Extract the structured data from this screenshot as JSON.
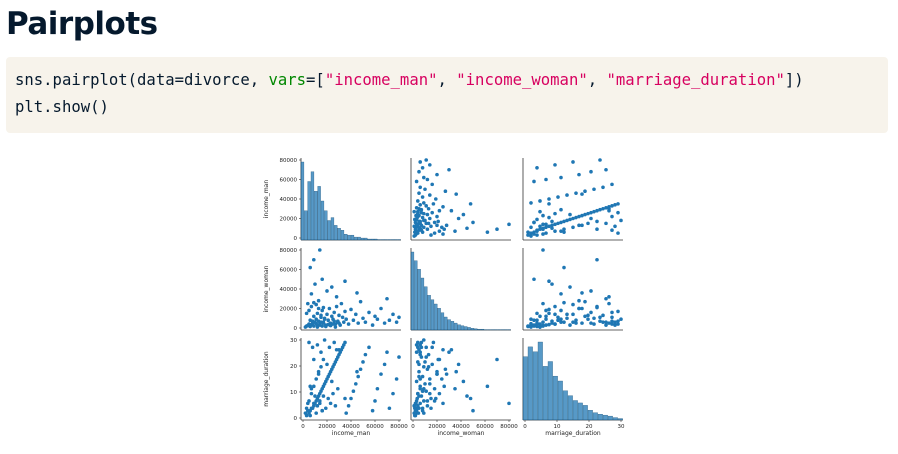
{
  "slide": {
    "title": "Pairplots"
  },
  "code": {
    "line1": {
      "prefix": "sns.pairplot(data=divorce, ",
      "kw": "vars",
      "eq": "=[",
      "s1": "\"income_man\"",
      "sep1": ", ",
      "s2": "\"income_woman\"",
      "sep2": ", ",
      "s3": "\"marriage_duration\"",
      "suffix": "])"
    },
    "line2": "plt.show()"
  },
  "colors": {
    "accent": "#1f77b4",
    "code_bg": "#f7f3eb",
    "keyword": "#008700",
    "string": "#d7005f",
    "title": "#05192d"
  },
  "chart_data": {
    "type": "scatter",
    "variables": [
      "income_man",
      "income_woman",
      "marriage_duration"
    ],
    "ranges": {
      "income_man": [
        0,
        80000
      ],
      "income_woman": [
        0,
        80000
      ],
      "marriage_duration": [
        0,
        32
      ]
    },
    "ticks": {
      "income_man": [
        "0",
        "20000",
        "40000",
        "60000",
        "80000"
      ],
      "income_woman": [
        "0",
        "20000",
        "40000",
        "60000",
        "80000"
      ],
      "marriage_duration": [
        "0",
        "10",
        "20",
        "30"
      ]
    },
    "xlabels": [
      "income_man",
      "income_woman",
      "marriage_duration"
    ],
    "ylabels": [
      "income_man",
      "income_woman",
      "marriage_duration"
    ],
    "points": [
      [
        3000,
        2000,
        1
      ],
      [
        5000,
        3000,
        2
      ],
      [
        6000,
        8000,
        3
      ],
      [
        8000,
        5000,
        4
      ],
      [
        9000,
        12000,
        5
      ],
      [
        10000,
        6000,
        6
      ],
      [
        11000,
        9000,
        7
      ],
      [
        12000,
        15000,
        8
      ],
      [
        13000,
        7000,
        9
      ],
      [
        14000,
        4000,
        10
      ],
      [
        15000,
        11000,
        11
      ],
      [
        16000,
        18000,
        12
      ],
      [
        17000,
        6000,
        13
      ],
      [
        18000,
        10000,
        14
      ],
      [
        19000,
        3000,
        15
      ],
      [
        20000,
        14000,
        16
      ],
      [
        21000,
        8000,
        17
      ],
      [
        22000,
        20000,
        18
      ],
      [
        23000,
        5000,
        19
      ],
      [
        24000,
        12000,
        20
      ],
      [
        25000,
        9000,
        21
      ],
      [
        26000,
        16000,
        22
      ],
      [
        27000,
        4000,
        23
      ],
      [
        28000,
        22000,
        24
      ],
      [
        29000,
        7000,
        25
      ],
      [
        30000,
        13000,
        26
      ],
      [
        31000,
        3000,
        27
      ],
      [
        32000,
        25000,
        28
      ],
      [
        33000,
        11000,
        29
      ],
      [
        34000,
        6000,
        30
      ],
      [
        35000,
        17000,
        31
      ],
      [
        36000,
        9000,
        2
      ],
      [
        38000,
        4000,
        5
      ],
      [
        40000,
        19000,
        8
      ],
      [
        42000,
        8000,
        11
      ],
      [
        44000,
        14000,
        14
      ],
      [
        46000,
        5000,
        17
      ],
      [
        48000,
        27000,
        20
      ],
      [
        50000,
        10000,
        23
      ],
      [
        52000,
        6000,
        26
      ],
      [
        55000,
        16000,
        29
      ],
      [
        58000,
        3000,
        3
      ],
      [
        60000,
        12000,
        7
      ],
      [
        62000,
        9000,
        12
      ],
      [
        65000,
        20000,
        18
      ],
      [
        68000,
        5000,
        22
      ],
      [
        70000,
        30000,
        27
      ],
      [
        72000,
        8000,
        4
      ],
      [
        75000,
        14000,
        10
      ],
      [
        78000,
        6000,
        16
      ],
      [
        80000,
        11000,
        25
      ],
      [
        4000,
        25000,
        6
      ],
      [
        7000,
        35000,
        12
      ],
      [
        10000,
        45000,
        9
      ],
      [
        13000,
        28000,
        18
      ],
      [
        16000,
        50000,
        3
      ],
      [
        20000,
        38000,
        22
      ],
      [
        24000,
        42000,
        15
      ],
      [
        28000,
        32000,
        28
      ],
      [
        35000,
        48000,
        8
      ],
      [
        45000,
        36000,
        19
      ],
      [
        6000,
        62000,
        13
      ],
      [
        9000,
        70000,
        24
      ],
      [
        14000,
        80000,
        6
      ],
      [
        5000,
        4000,
        31
      ],
      [
        8000,
        7000,
        29
      ],
      [
        12000,
        3000,
        30
      ],
      [
        15000,
        6000,
        27
      ],
      [
        18000,
        9000,
        32
      ],
      [
        22000,
        4000,
        29
      ],
      [
        26000,
        7000,
        31
      ],
      [
        30000,
        5000,
        28
      ],
      [
        2000,
        1000,
        2
      ],
      [
        4000,
        2500,
        3
      ],
      [
        6000,
        1500,
        1
      ],
      [
        7000,
        3500,
        4
      ],
      [
        9000,
        2000,
        6
      ],
      [
        11000,
        4500,
        2
      ],
      [
        12000,
        1000,
        5
      ],
      [
        14000,
        3000,
        7
      ],
      [
        16000,
        2000,
        3
      ],
      [
        17000,
        5000,
        9
      ],
      [
        19000,
        1500,
        4
      ],
      [
        21000,
        3500,
        8
      ],
      [
        23000,
        2500,
        6
      ],
      [
        25000,
        4000,
        10
      ],
      [
        27000,
        1000,
        5
      ],
      [
        29000,
        6000,
        12
      ],
      [
        3000,
        15000,
        4
      ],
      [
        5000,
        18000,
        7
      ],
      [
        7000,
        22000,
        10
      ],
      [
        9000,
        26000,
        13
      ],
      [
        11000,
        24000,
        16
      ],
      [
        13000,
        20000,
        19
      ],
      [
        15000,
        13000,
        21
      ],
      [
        17000,
        21000,
        24
      ]
    ],
    "hist_bins": {
      "income_man": [
        8,
        3,
        6,
        7,
        5,
        5.5,
        4,
        3,
        2,
        2.3,
        1.5,
        1.2,
        1,
        0.6,
        0.5,
        0.5,
        0.3,
        0.3,
        0.2,
        0.2,
        0.1,
        0.1,
        0.1,
        0.05,
        0.05,
        0.05,
        0.05,
        0.05,
        0.05,
        0.05
      ],
      "income_woman": [
        9,
        8,
        7,
        6,
        5,
        4,
        3.5,
        3,
        2.5,
        2,
        1.5,
        1.2,
        1,
        0.8,
        0.6,
        0.5,
        0.4,
        0.3,
        0.2,
        0.15,
        0.1,
        0.1,
        0.05,
        0.05,
        0.05,
        0.05,
        0.05,
        0.05,
        0.05,
        0.05
      ],
      "marriage_duration": [
        13,
        15,
        14,
        16,
        11,
        12,
        9,
        8,
        6,
        5,
        4,
        3.5,
        3,
        2,
        1.5,
        1.2,
        1,
        0.8,
        0.5,
        0.3
      ]
    }
  }
}
